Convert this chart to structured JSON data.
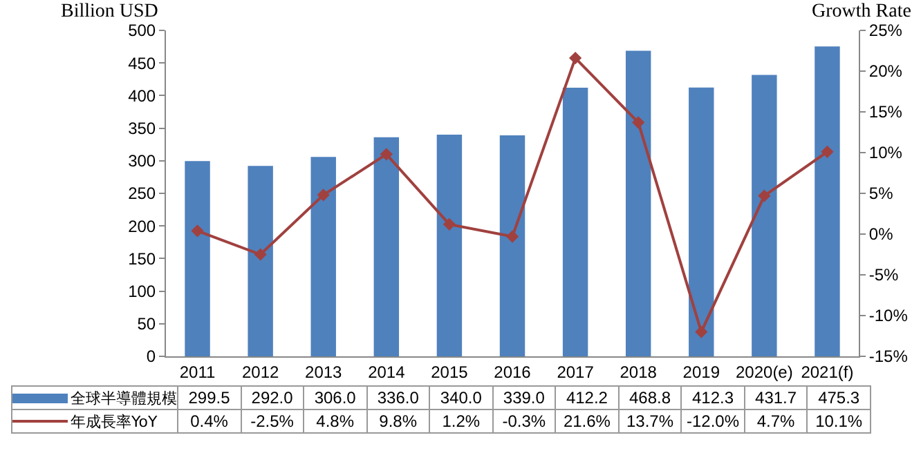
{
  "chart_data": {
    "type": "bar",
    "ylabel": "Billion USD",
    "y2label": "Growth Rate",
    "categories": [
      "2011",
      "2012",
      "2013",
      "2014",
      "2015",
      "2016",
      "2017",
      "2018",
      "2019",
      "2020(e)",
      "2021(f)"
    ],
    "series": [
      {
        "name": "全球半導體規模",
        "color": "#4f81bd",
        "values": [
          299.5,
          292.0,
          306.0,
          336.0,
          340.0,
          339.0,
          412.2,
          468.8,
          412.3,
          431.7,
          475.3
        ],
        "value_labels": [
          "299.5",
          "292.0",
          "306.0",
          "336.0",
          "340.0",
          "339.0",
          "412.2",
          "468.8",
          "412.3",
          "431.7",
          "475.3"
        ]
      },
      {
        "name": "年成長率YoY",
        "type": "line",
        "axis": "y2",
        "color": "#a0413f",
        "marker": "diamond",
        "values": [
          0.4,
          -2.5,
          4.8,
          9.8,
          1.2,
          -0.3,
          21.6,
          13.7,
          -12.0,
          4.7,
          10.1
        ],
        "value_labels": [
          "0.4%",
          "-2.5%",
          "4.8%",
          "9.8%",
          "1.2%",
          "-0.3%",
          "21.6%",
          "13.7%",
          "-12.0%",
          "4.7%",
          "10.1%"
        ]
      }
    ],
    "ylim": [
      0,
      500
    ],
    "yticks": [
      0,
      50,
      100,
      150,
      200,
      250,
      300,
      350,
      400,
      450,
      500
    ],
    "y2lim": [
      -15,
      25
    ],
    "y2ticks": [
      {
        "value": -15,
        "label": "-15%"
      },
      {
        "value": -10,
        "label": "-10%"
      },
      {
        "value": -5,
        "label": "-5%"
      },
      {
        "value": 0,
        "label": "0%"
      },
      {
        "value": 5,
        "label": "5%"
      },
      {
        "value": 10,
        "label": "10%"
      },
      {
        "value": 15,
        "label": "15%"
      },
      {
        "value": 20,
        "label": "20%"
      },
      {
        "value": 25,
        "label": "25%"
      }
    ],
    "grid": false,
    "legend": "bottom"
  }
}
